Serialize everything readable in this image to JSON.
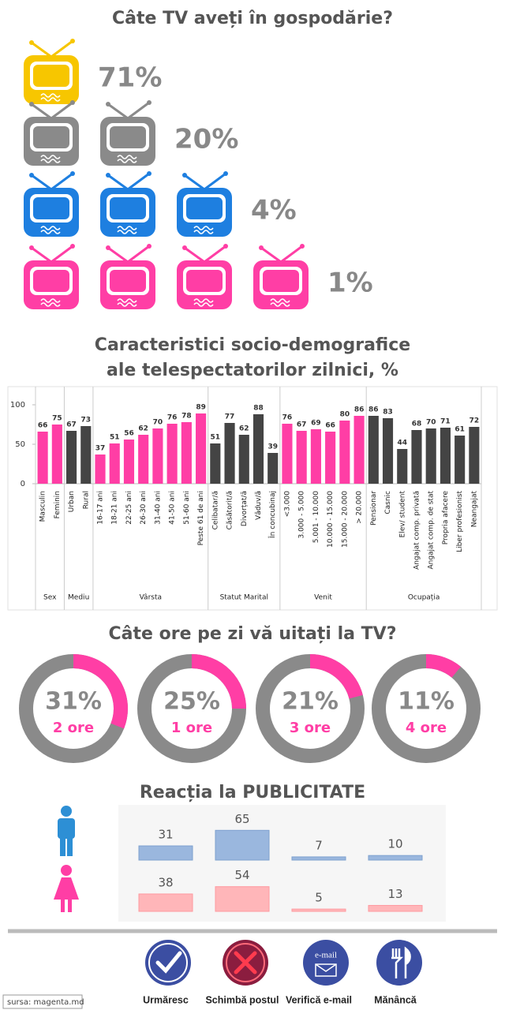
{
  "source": "sursa: magenta.md",
  "chart_data": [
    {
      "type": "pictogram",
      "title": "Câte TV aveți în gospodărie?",
      "icon_counts": [
        1,
        2,
        3,
        4
      ],
      "values": [
        71,
        20,
        4,
        1
      ],
      "value_labels": [
        "71%",
        "20%",
        "4%",
        "1%"
      ],
      "colors": [
        "#f7c600",
        "#8a8a8a",
        "#1e7fe0",
        "#ff3ea5"
      ]
    },
    {
      "type": "grouped-bar",
      "title": "Caracteristici socio-demografice",
      "subtitle": "ale telespectatorilor zilnici, %",
      "ylim": [
        0,
        100
      ],
      "yticks": [
        0,
        50,
        100
      ],
      "groups": [
        {
          "name": "Sex",
          "color": "#ff3ea5",
          "categories": [
            "Masculin",
            "Feminin"
          ],
          "values": [
            66,
            75
          ]
        },
        {
          "name": "Mediu",
          "color": "#444444",
          "categories": [
            "Urban",
            "Rural"
          ],
          "values": [
            67,
            73
          ]
        },
        {
          "name": "Vârsta",
          "color": "#ff3ea5",
          "categories": [
            "16-17 ani",
            "18-21 ani",
            "22-25 ani",
            "26-30 ani",
            "31-40 ani",
            "41-50 ani",
            "51-60 ani",
            "Peste 61 de ani"
          ],
          "values": [
            37,
            51,
            56,
            62,
            70,
            76,
            78,
            89
          ]
        },
        {
          "name": "Statut Marital",
          "color": "#444444",
          "categories": [
            "Celibatar/ă",
            "Căsătorit/ă",
            "Divorțat/ă",
            "Văduv/ă",
            "În concubinaj"
          ],
          "values": [
            51,
            77,
            62,
            88,
            39
          ]
        },
        {
          "name": "Venit",
          "color": "#ff3ea5",
          "categories": [
            "<3.000",
            "3.000 - 5.000",
            "5.001 - 10.000",
            "10.000 - 15.000",
            "15.000 - 20.000",
            "> 20.000"
          ],
          "values": [
            76,
            67,
            69,
            66,
            80,
            86
          ]
        },
        {
          "name": "Ocupația",
          "color": "#444444",
          "categories": [
            "Pensionar",
            "Casnic",
            "Elev/ student",
            "Angajat comp. privată",
            "Angajat comp. de stat",
            "Propria afacere",
            "Liber profesionist",
            "Neangajat"
          ],
          "values": [
            86,
            83,
            44,
            68,
            70,
            71,
            61,
            72
          ]
        }
      ]
    },
    {
      "type": "donut",
      "title": "Câte ore pe zi vă uitați la TV?",
      "categories": [
        "2 ore",
        "1 ore",
        "3 ore",
        "4 ore"
      ],
      "values": [
        31,
        25,
        21,
        11
      ],
      "value_labels": [
        "31%",
        "25%",
        "21%",
        "11%"
      ],
      "color": "#ff3ea5",
      "track_color": "#8a8a8a"
    },
    {
      "type": "bar",
      "title": "Reacția la PUBLICITATE",
      "categories": [
        "Urmăresc",
        "Schimbă postul",
        "Verifică e-mail",
        "Mănâncă"
      ],
      "series": [
        {
          "color": "#9ab7de",
          "values": [
            31,
            65,
            7,
            10
          ]
        },
        {
          "color": "#ffb6b9",
          "values": [
            38,
            54,
            5,
            13
          ]
        }
      ],
      "icon_text": "e-mail"
    }
  ]
}
